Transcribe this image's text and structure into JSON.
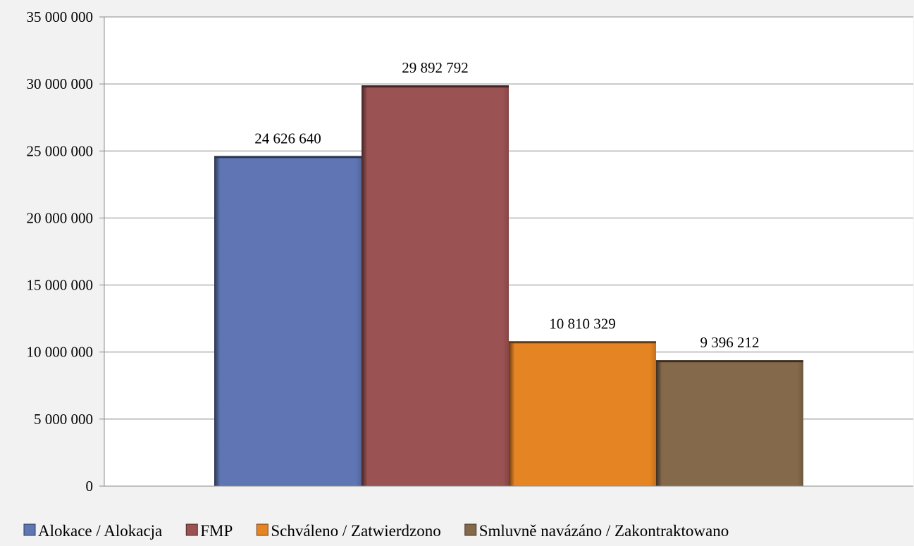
{
  "chart_data": {
    "type": "bar",
    "categories": [
      ""
    ],
    "series": [
      {
        "name": "Alokace / Alokacja",
        "values": [
          24626640
        ],
        "label": "24 626 640",
        "color": "#6076b4"
      },
      {
        "name": "FMP",
        "values": [
          29892792
        ],
        "label": "29 892 792",
        "color": "#9b5253"
      },
      {
        "name": "Schváleno / Zatwierdzono",
        "values": [
          10810329
        ],
        "label": "10 810 329",
        "color": "#e58423"
      },
      {
        "name": "Smluvně navázáno / Zakontraktowano",
        "values": [
          9396212
        ],
        "label": "9 396 212",
        "color": "#85694b"
      }
    ],
    "ylim": [
      0,
      35000000
    ],
    "yticks": [
      0,
      5000000,
      10000000,
      15000000,
      20000000,
      25000000,
      30000000,
      35000000
    ],
    "ytick_labels": [
      "0",
      "5 000 000",
      "10 000 000",
      "15 000 000",
      "20 000 000",
      "25 000 000",
      "30 000 000",
      "35 000 000"
    ],
    "grid": true,
    "legend": "bottom"
  }
}
